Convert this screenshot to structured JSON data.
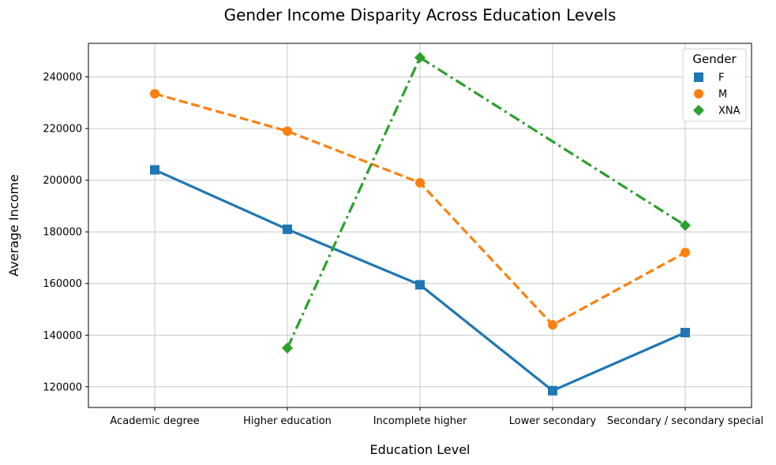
{
  "chart_data": {
    "type": "line",
    "title": "Gender Income Disparity Across Education Levels",
    "xlabel": "Education Level",
    "ylabel": "Average Income",
    "categories": [
      "Academic degree",
      "Higher education",
      "Incomplete higher",
      "Lower secondary",
      "Secondary / secondary special"
    ],
    "ylim": [
      112000,
      253000
    ],
    "yticks": [
      120000,
      140000,
      160000,
      180000,
      200000,
      220000,
      240000
    ],
    "grid": true,
    "legend": {
      "title": "Gender",
      "position": "top-right"
    },
    "series": [
      {
        "name": "F",
        "values": [
          204000,
          181000,
          159500,
          118500,
          141000
        ],
        "color": "#1f77b4",
        "marker": "square",
        "line_style": "solid"
      },
      {
        "name": "M",
        "values": [
          233500,
          219000,
          199000,
          144000,
          172000
        ],
        "color": "#ff7f0e",
        "marker": "circle",
        "line_style": "dashed"
      },
      {
        "name": "XNA",
        "values": [
          null,
          135000,
          247500,
          null,
          182500
        ],
        "color": "#2ca02c",
        "marker": "diamond",
        "line_style": "dashdot"
      }
    ]
  }
}
